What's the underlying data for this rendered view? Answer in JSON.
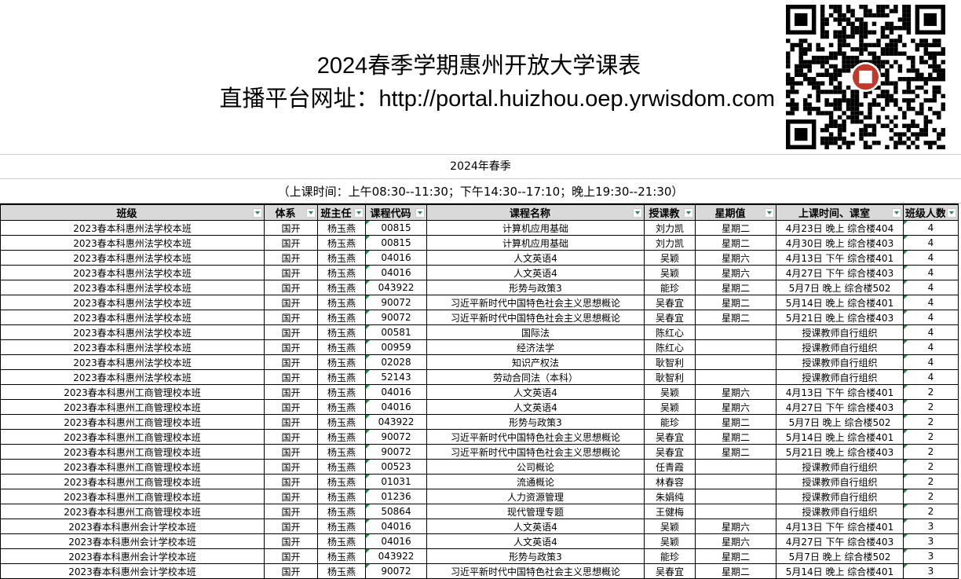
{
  "title": {
    "line1": "2024春季学期惠州开放大学课表",
    "line2": "直播平台网址：http://portal.huizhou.oep.yrwisdom.com"
  },
  "qr_icon": "qr-code",
  "season": "2024年春季",
  "hours": "（上课时间：上午08:30--11:30；下午14:30--17:10；晚上19:30--21:30）",
  "columns": [
    "班级",
    "体系",
    "班主任",
    "课程代码",
    "课程名称",
    "授课教师",
    "星期值",
    "上课时间、课室",
    "班级人数"
  ],
  "headers_visible": [
    "班级",
    "体系",
    "班主任",
    "课程代码",
    "课程名称",
    "授课教",
    "星期值",
    "上课时间、课室",
    "班级人数"
  ],
  "rows": [
    [
      "2023春本科惠州法学校本班",
      "国开",
      "杨玉燕",
      "00815",
      "计算机应用基础",
      "刘力凯",
      "星期二",
      "4月23日 晚上  综合楼404",
      "4"
    ],
    [
      "2023春本科惠州法学校本班",
      "国开",
      "杨玉燕",
      "00815",
      "计算机应用基础",
      "刘力凯",
      "星期二",
      "4月30日 晚上  综合楼403",
      "4"
    ],
    [
      "2023春本科惠州法学校本班",
      "国开",
      "杨玉燕",
      "04016",
      "人文英语4",
      "吴颖",
      "星期六",
      "4月13日 下午  综合楼401",
      "4"
    ],
    [
      "2023春本科惠州法学校本班",
      "国开",
      "杨玉燕",
      "04016",
      "人文英语4",
      "吴颖",
      "星期六",
      "4月27日 下午  综合楼403",
      "4"
    ],
    [
      "2023春本科惠州法学校本班",
      "国开",
      "杨玉燕",
      "043922",
      "形势与政策3",
      "能珍",
      "星期二",
      "5月7日 晚上  综合楼502",
      "4"
    ],
    [
      "2023春本科惠州法学校本班",
      "国开",
      "杨玉燕",
      "90072",
      "习近平新时代中国特色社会主义思想概论",
      "吴春宜",
      "星期二",
      "5月14日 晚上  综合楼401",
      "4"
    ],
    [
      "2023春本科惠州法学校本班",
      "国开",
      "杨玉燕",
      "90072",
      "习近平新时代中国特色社会主义思想概论",
      "吴春宜",
      "星期二",
      "5月21日 晚上  综合楼403",
      "4"
    ],
    [
      "2023春本科惠州法学校本班",
      "国开",
      "杨玉燕",
      "00581",
      "国际法",
      "陈红心",
      "",
      "授课教师自行组织",
      "4"
    ],
    [
      "2023春本科惠州法学校本班",
      "国开",
      "杨玉燕",
      "00959",
      "经济法学",
      "陈红心",
      "",
      "授课教师自行组织",
      "4"
    ],
    [
      "2023春本科惠州法学校本班",
      "国开",
      "杨玉燕",
      "02028",
      "知识产权法",
      "耿智利",
      "",
      "授课教师自行组织",
      "4"
    ],
    [
      "2023春本科惠州法学校本班",
      "国开",
      "杨玉燕",
      "52143",
      "劳动合同法（本科）",
      "耿智利",
      "",
      "授课教师自行组织",
      "4"
    ],
    [
      "2023春本科惠州工商管理校本班",
      "国开",
      "杨玉燕",
      "04016",
      "人文英语4",
      "吴颖",
      "星期六",
      "4月13日 下午  综合楼401",
      "2"
    ],
    [
      "2023春本科惠州工商管理校本班",
      "国开",
      "杨玉燕",
      "04016",
      "人文英语4",
      "吴颖",
      "星期六",
      "4月27日 下午  综合楼403",
      "2"
    ],
    [
      "2023春本科惠州工商管理校本班",
      "国开",
      "杨玉燕",
      "043922",
      "形势与政策3",
      "能珍",
      "星期二",
      "5月7日 晚上  综合楼502",
      "2"
    ],
    [
      "2023春本科惠州工商管理校本班",
      "国开",
      "杨玉燕",
      "90072",
      "习近平新时代中国特色社会主义思想概论",
      "吴春宜",
      "星期二",
      "5月14日 晚上  综合楼401",
      "2"
    ],
    [
      "2023春本科惠州工商管理校本班",
      "国开",
      "杨玉燕",
      "90072",
      "习近平新时代中国特色社会主义思想概论",
      "吴春宜",
      "星期二",
      "5月21日 晚上  综合楼403",
      "2"
    ],
    [
      "2023春本科惠州工商管理校本班",
      "国开",
      "杨玉燕",
      "00523",
      "公司概论",
      "任青霞",
      "",
      "授课教师自行组织",
      "2"
    ],
    [
      "2023春本科惠州工商管理校本班",
      "国开",
      "杨玉燕",
      "01031",
      "流通概论",
      "林春容",
      "",
      "授课教师自行组织",
      "2"
    ],
    [
      "2023春本科惠州工商管理校本班",
      "国开",
      "杨玉燕",
      "01236",
      "人力资源管理",
      "朱娟纯",
      "",
      "授课教师自行组织",
      "2"
    ],
    [
      "2023春本科惠州工商管理校本班",
      "国开",
      "杨玉燕",
      "50864",
      "现代管理专题",
      "王健梅",
      "",
      "授课教师自行组织",
      "2"
    ],
    [
      "2023春本科惠州会计学校本班",
      "国开",
      "杨玉燕",
      "04016",
      "人文英语4",
      "吴颖",
      "星期六",
      "4月13日 下午  综合楼401",
      "3"
    ],
    [
      "2023春本科惠州会计学校本班",
      "国开",
      "杨玉燕",
      "04016",
      "人文英语4",
      "吴颖",
      "星期六",
      "4月27日 下午  综合楼403",
      "3"
    ],
    [
      "2023春本科惠州会计学校本班",
      "国开",
      "杨玉燕",
      "043922",
      "形势与政策3",
      "能珍",
      "星期二",
      "5月7日 晚上  综合楼502",
      "3"
    ],
    [
      "2023春本科惠州会计学校本班",
      "国开",
      "杨玉燕",
      "90072",
      "习近平新时代中国特色社会主义思想概论",
      "吴春宜",
      "星期二",
      "5月14日 晚上  综合楼401",
      "3"
    ]
  ]
}
